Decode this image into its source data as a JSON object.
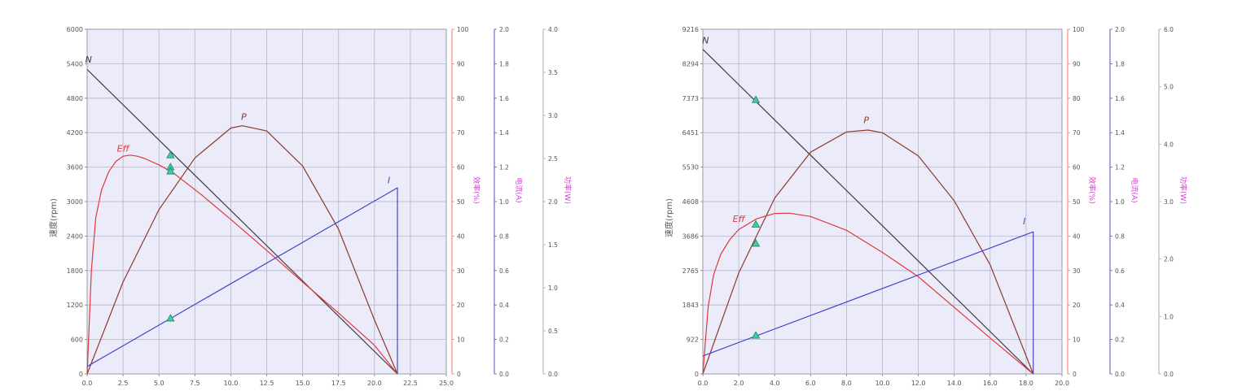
{
  "colors": {
    "plot_bg": "#ecebfa",
    "grid": "#b4b4cc",
    "speed": "#3c3c46",
    "power": "#8b3a2a",
    "efficiency": "#e03838",
    "current": "#4646c8",
    "eff_axis": "#ff7070",
    "torque_axis": "#6b46c8",
    "marker": "#3ccfa0"
  },
  "chart_data": [
    {
      "type": "line",
      "ylabel": "速度(rpm)",
      "x_ticks": [
        "0.0",
        "2.5",
        "5.0",
        "7.5",
        "10.0",
        "12.5",
        "15.0",
        "17.5",
        "20.0",
        "22.5",
        "25.0"
      ],
      "xlim": [
        0,
        25
      ],
      "y_ticks": [
        "0",
        "600",
        "1200",
        "1800",
        "2400",
        "3000",
        "3600",
        "4200",
        "4800",
        "5400",
        "6000"
      ],
      "ylim": [
        0,
        6000
      ],
      "eff_axis": {
        "label": "效率(%)",
        "ticks": [
          "0",
          "10",
          "20",
          "30",
          "40",
          "50",
          "60",
          "70",
          "80",
          "90",
          "100"
        ],
        "range": [
          0,
          100
        ]
      },
      "current_axis": {
        "label": "电流(A)",
        "ticks": [
          "0.0",
          "0.2",
          "0.4",
          "0.6",
          "0.8",
          "1.0",
          "1.2",
          "1.4",
          "1.6",
          "1.8",
          "2.0"
        ],
        "range": [
          0,
          2
        ]
      },
      "power_axis": {
        "label": "功率(W)",
        "ticks": [
          "0.0",
          "0.5",
          "1.0",
          "1.5",
          "2.0",
          "2.5",
          "3.0",
          "3.5",
          "4.0"
        ],
        "range": [
          0,
          4
        ]
      },
      "series": [
        {
          "name": "N",
          "key": "speed",
          "x": [
            0.0,
            21.6
          ],
          "y": [
            5300,
            0
          ]
        },
        {
          "name": "P",
          "key": "power",
          "x": [
            0.0,
            2.5,
            5.0,
            7.5,
            10.0,
            10.8,
            12.5,
            15.0,
            17.5,
            20.0,
            21.6
          ],
          "y": [
            0,
            1600,
            2860,
            3760,
            4280,
            4320,
            4230,
            3620,
            2520,
            940,
            0
          ]
        },
        {
          "name": "Eff",
          "key": "efficiency",
          "x": [
            0.0,
            0.3,
            0.6,
            1.0,
            1.5,
            2.0,
            2.5,
            3.0,
            3.5,
            4.0,
            5.0,
            6.0,
            8.0,
            10.0,
            12.5,
            15.0,
            17.5,
            20.0,
            21.6
          ],
          "y": [
            0,
            1820,
            2720,
            3200,
            3520,
            3700,
            3790,
            3810,
            3790,
            3750,
            3640,
            3500,
            3110,
            2690,
            2150,
            1600,
            1060,
            500,
            0
          ]
        },
        {
          "name": "I",
          "key": "current",
          "x": [
            0.0,
            21.6,
            21.6
          ],
          "y": [
            130,
            3240,
            0
          ]
        }
      ],
      "markers": [
        {
          "x": 5.8,
          "y": 3810
        },
        {
          "x": 5.8,
          "y": 3600
        },
        {
          "x": 5.8,
          "y": 3530
        },
        {
          "x": 5.8,
          "y": 970
        }
      ],
      "curve_labels": [
        {
          "text": "N",
          "x": 0.1,
          "y": 5420
        },
        {
          "text": "P",
          "x": 10.9,
          "y": 4420
        },
        {
          "text": "Eff",
          "x": 2.5,
          "y": 3870
        },
        {
          "text": "I",
          "x": 21.0,
          "y": 3320
        }
      ]
    },
    {
      "type": "line",
      "ylabel": "速度(rpm)",
      "x_ticks": [
        "0.0",
        "2.0",
        "4.0",
        "6.0",
        "8.0",
        "10.0",
        "12.0",
        "14.0",
        "16.0",
        "18.0",
        "20.0"
      ],
      "xlim": [
        0,
        20
      ],
      "y_ticks": [
        "0",
        "922",
        "1843",
        "2765",
        "3686",
        "4608",
        "5530",
        "6451",
        "7373",
        "8294",
        "9216"
      ],
      "ylim": [
        0,
        9216
      ],
      "eff_axis": {
        "label": "效率(%)",
        "ticks": [
          "0",
          "10",
          "20",
          "30",
          "40",
          "50",
          "60",
          "70",
          "80",
          "90",
          "100"
        ],
        "range": [
          0,
          100
        ]
      },
      "current_axis": {
        "label": "电流(A)",
        "ticks": [
          "0.0",
          "0.2",
          "0.4",
          "0.6",
          "0.8",
          "1.0",
          "1.2",
          "1.4",
          "1.6",
          "1.8",
          "2.0"
        ],
        "range": [
          0,
          2
        ]
      },
      "power_axis": {
        "label": "功率(W)",
        "ticks": [
          "0.0",
          "1.0",
          "2.0",
          "3.0",
          "4.0",
          "5.0",
          "6.0"
        ],
        "range": [
          0,
          6
        ]
      },
      "series": [
        {
          "name": "N",
          "key": "speed",
          "x": [
            0.0,
            18.4
          ],
          "y": [
            8680,
            0
          ]
        },
        {
          "name": "P",
          "key": "power",
          "x": [
            0.0,
            2.0,
            4.0,
            6.0,
            8.0,
            9.2,
            10.0,
            12.0,
            14.0,
            16.0,
            18.4
          ],
          "y": [
            0,
            2700,
            4700,
            5930,
            6470,
            6520,
            6450,
            5830,
            4630,
            2920,
            0
          ]
        },
        {
          "name": "Eff",
          "key": "efficiency",
          "x": [
            0.0,
            0.3,
            0.6,
            1.0,
            1.5,
            2.0,
            3.0,
            4.0,
            4.8,
            6.0,
            8.0,
            10.0,
            12.0,
            14.0,
            16.0,
            18.4
          ],
          "y": [
            0,
            1800,
            2650,
            3200,
            3590,
            3860,
            4150,
            4290,
            4300,
            4210,
            3840,
            3250,
            2600,
            1780,
            960,
            0
          ]
        },
        {
          "name": "I",
          "key": "current",
          "x": [
            0.0,
            18.4,
            18.4
          ],
          "y": [
            480,
            3800,
            0
          ]
        }
      ],
      "markers": [
        {
          "x": 2.95,
          "y": 7330
        },
        {
          "x": 2.95,
          "y": 4000
        },
        {
          "x": 2.95,
          "y": 3490
        },
        {
          "x": 2.95,
          "y": 1030
        }
      ],
      "curve_labels": [
        {
          "text": "N",
          "x": 0.15,
          "y": 8840
        },
        {
          "text": "P",
          "x": 9.1,
          "y": 6710
        },
        {
          "text": "Eff",
          "x": 2.0,
          "y": 4060
        },
        {
          "text": "I",
          "x": 17.9,
          "y": 4000
        }
      ]
    }
  ]
}
